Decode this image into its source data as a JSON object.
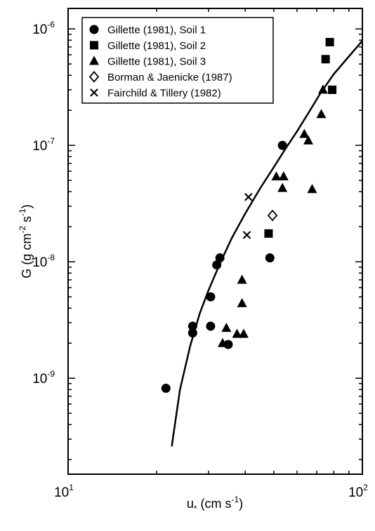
{
  "chart_data": {
    "type": "scatter",
    "x_scale": "log",
    "y_scale": "log",
    "xlim": [
      10,
      100
    ],
    "ylim": [
      1.5e-10,
      1.5e-06
    ],
    "x_ticks": [
      {
        "base": "10",
        "exp": "1"
      },
      {
        "base": "10",
        "exp": "2"
      }
    ],
    "y_ticks": [
      {
        "base": "10",
        "exp": "-9",
        "value": 1e-09
      },
      {
        "base": "10",
        "exp": "-8",
        "value": 1e-08
      },
      {
        "base": "10",
        "exp": "-7",
        "value": 1e-07
      },
      {
        "base": "10",
        "exp": "-6",
        "value": 1e-06
      }
    ],
    "xlabel": {
      "main": "u",
      "sub": "*",
      "unit": " (cm s",
      "unit_exp": "-1",
      "close": ")"
    },
    "ylabel": {
      "prefix": "G (g cm",
      "exp1": "-2",
      "mid": " s",
      "exp2": "-1",
      "close": ")"
    },
    "legend_position": "top-left",
    "series": [
      {
        "name": "Gillette (1981), Soil 1",
        "marker": "circle",
        "points": [
          [
            21.5,
            8.2e-10
          ],
          [
            26.5,
            2.45e-09
          ],
          [
            26.5,
            2.8e-09
          ],
          [
            30.5,
            2.8e-09
          ],
          [
            30.5,
            5e-09
          ],
          [
            32.0,
            9.4e-09
          ],
          [
            32.8,
            1.08e-08
          ],
          [
            35.0,
            1.95e-09
          ],
          [
            48.5,
            1.08e-08
          ],
          [
            53.5,
            1e-07
          ]
        ]
      },
      {
        "name": "Gillette (1981), Soil 2",
        "marker": "square",
        "points": [
          [
            48.0,
            1.75e-08
          ],
          [
            75.0,
            5.5e-07
          ],
          [
            77.5,
            7.7e-07
          ],
          [
            79.0,
            3e-07
          ]
        ]
      },
      {
        "name": "Gillette (1981), Soil 3",
        "marker": "triangle",
        "points": [
          [
            33.5,
            2e-09
          ],
          [
            34.5,
            2.7e-09
          ],
          [
            37.5,
            2.4e-09
          ],
          [
            39.5,
            2.4e-09
          ],
          [
            39.0,
            4.4e-09
          ],
          [
            39.0,
            7e-09
          ],
          [
            51.0,
            5.4e-08
          ],
          [
            53.5,
            4.3e-08
          ],
          [
            54.0,
            5.4e-08
          ],
          [
            63.5,
            1.25e-07
          ],
          [
            65.5,
            1.1e-07
          ],
          [
            67.5,
            4.2e-08
          ],
          [
            72.5,
            1.85e-07
          ],
          [
            73.5,
            3e-07
          ]
        ]
      },
      {
        "name": "Borman & Jaenicke (1987)",
        "marker": "diamond",
        "points": [
          [
            49.5,
            2.5e-08
          ]
        ]
      },
      {
        "name": "Fairchild & Tillery (1982)",
        "marker": "cross",
        "points": [
          [
            41.0,
            3.6e-08
          ],
          [
            40.5,
            1.7e-08
          ]
        ]
      }
    ],
    "fit_curve": [
      [
        22.5,
        2.6e-10
      ],
      [
        24.0,
        8e-10
      ],
      [
        26.0,
        1.9e-09
      ],
      [
        28.0,
        3.6e-09
      ],
      [
        30.0,
        5.7e-09
      ],
      [
        33.0,
        1e-08
      ],
      [
        36.0,
        1.6e-08
      ],
      [
        40.0,
        2.6e-08
      ],
      [
        45.0,
        4.3e-08
      ],
      [
        50.0,
        6.5e-08
      ],
      [
        55.0,
        9.5e-08
      ],
      [
        60.0,
        1.32e-07
      ],
      [
        66.0,
        1.95e-07
      ],
      [
        72.0,
        2.8e-07
      ],
      [
        80.0,
        4.1e-07
      ],
      [
        90.0,
        5.8e-07
      ],
      [
        100.0,
        7.9e-07
      ]
    ]
  }
}
